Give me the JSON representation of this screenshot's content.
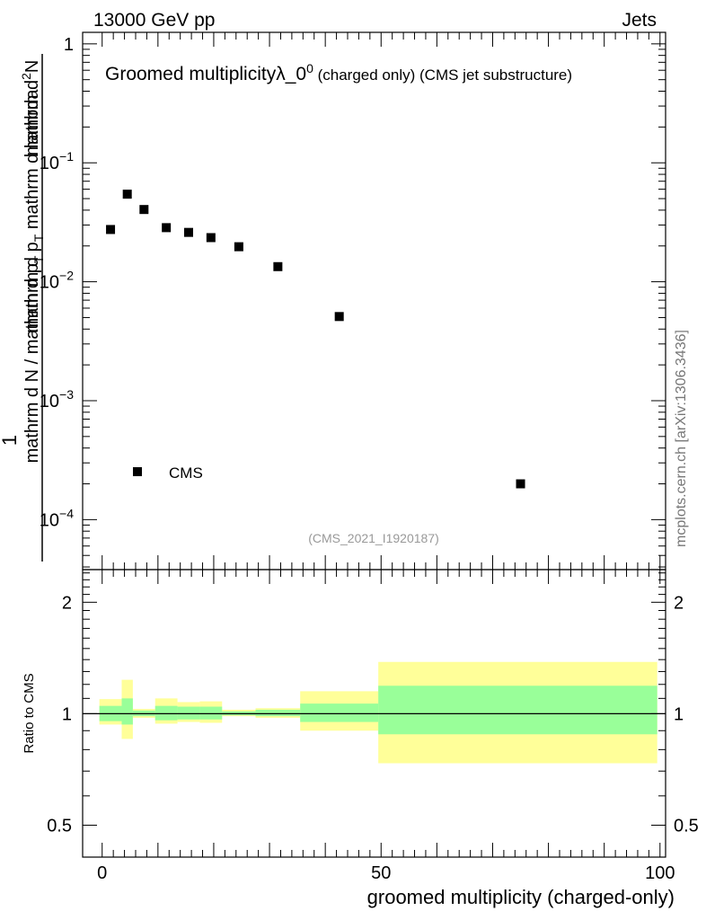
{
  "header": {
    "energy_label": "13000 GeV pp",
    "category_label": "Jets"
  },
  "watermark": "mcplots.cern.ch [arXiv:1306.3436]",
  "chart_data": [
    {
      "type": "scatter",
      "title_main": "Groomed multiplicity",
      "title_lambda": "λ_0",
      "title_sup": "0",
      "title_rest": " (charged only) (CMS jet substructure)",
      "ylabel": {
        "line_top": "1",
        "frac1_num": "mathrm dN",
        "frac1_den_a": "mathrm d N / mathrm d p",
        "frac1_den_sub": "T",
        "frac2_num": "mathrm d",
        "frac2_num_sup": "2",
        "frac2_den_a": "mathrm d p",
        "frac2_den_sub": "T",
        "frac2_den_b": " mathrm d lambda"
      },
      "ylabel_display_top": "mathrm d N",
      "ylabel_display_mid": "mathrm d p_T mathrm d lambda",
      "ylabel_display_bottom": "mathrm d N / mathrm d p_T",
      "yscale": "log",
      "ylim": [
        3.8e-05,
        1.25
      ],
      "xlim": [
        -3.5,
        101
      ],
      "y_tick_labels": [
        {
          "value": 1,
          "base": "1",
          "exp": ""
        },
        {
          "value": 0.1,
          "base": "10",
          "exp": "−1"
        },
        {
          "value": 0.01,
          "base": "10",
          "exp": "−2"
        },
        {
          "value": 0.001,
          "base": "10",
          "exp": "−3"
        },
        {
          "value": 0.0001,
          "base": "10",
          "exp": "−4"
        }
      ],
      "series": [
        {
          "name": "CMS",
          "x": [
            1.5,
            4.5,
            7.5,
            11.5,
            15.5,
            19.5,
            24.5,
            31.5,
            42.5,
            75
          ],
          "y": [
            0.0275,
            0.0545,
            0.0405,
            0.0285,
            0.026,
            0.0235,
            0.0197,
            0.0134,
            0.0051,
            0.0002
          ]
        }
      ],
      "legend": {
        "entry": "CMS",
        "placement": "bottom-left"
      },
      "analysis_tag": "(CMS_2021_I1920187)"
    },
    {
      "type": "band",
      "ylabel": "Ratio to CMS",
      "xlabel": "groomed multiplicity (charged-only)",
      "yscale": "log",
      "ylim": [
        0.41,
        2.45
      ],
      "xlim": [
        -3.5,
        101
      ],
      "x_tick_labels": [
        "0",
        "50",
        "100"
      ],
      "y_tick_labels": [
        {
          "value": 2,
          "label": "2"
        },
        {
          "value": 1,
          "label": "1"
        },
        {
          "value": 0.5,
          "label": "0.5"
        }
      ],
      "reference_line": 1,
      "bins": [
        {
          "x0": -0.5,
          "x1": 3.5,
          "in_lo": 0.955,
          "in_hi": 1.05,
          "out_lo": 0.935,
          "out_hi": 1.095
        },
        {
          "x0": 3.5,
          "x1": 5.5,
          "in_lo": 0.935,
          "in_hi": 1.1,
          "out_lo": 0.855,
          "out_hi": 1.235
        },
        {
          "x0": 5.5,
          "x1": 9.5,
          "in_lo": 0.985,
          "in_hi": 1.02,
          "out_lo": 0.975,
          "out_hi": 1.03
        },
        {
          "x0": 9.5,
          "x1": 13.5,
          "in_lo": 0.96,
          "in_hi": 1.05,
          "out_lo": 0.94,
          "out_hi": 1.1
        },
        {
          "x0": 13.5,
          "x1": 17.5,
          "in_lo": 0.965,
          "in_hi": 1.045,
          "out_lo": 0.95,
          "out_hi": 1.075
        },
        {
          "x0": 17.5,
          "x1": 21.5,
          "in_lo": 0.965,
          "in_hi": 1.045,
          "out_lo": 0.945,
          "out_hi": 1.08
        },
        {
          "x0": 21.5,
          "x1": 27.5,
          "in_lo": 0.99,
          "in_hi": 1.015,
          "out_lo": 0.985,
          "out_hi": 1.025
        },
        {
          "x0": 27.5,
          "x1": 35.5,
          "in_lo": 0.985,
          "in_hi": 1.025,
          "out_lo": 0.975,
          "out_hi": 1.035
        },
        {
          "x0": 35.5,
          "x1": 49.5,
          "in_lo": 0.95,
          "in_hi": 1.065,
          "out_lo": 0.9,
          "out_hi": 1.15
        },
        {
          "x0": 49.5,
          "x1": 99.5,
          "in_lo": 0.88,
          "in_hi": 1.19,
          "out_lo": 0.735,
          "out_hi": 1.38
        }
      ]
    }
  ],
  "colors": {
    "inner_band": "#99ff99",
    "outer_band": "#ffff99",
    "marker": "#000000",
    "analysis_tag": "#999999",
    "watermark": "#777777"
  }
}
